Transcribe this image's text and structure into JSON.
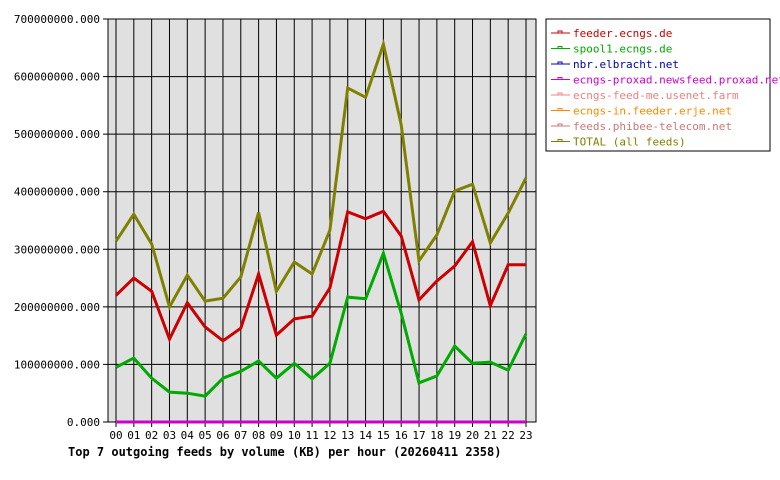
{
  "chart_data": {
    "type": "line",
    "title": "Top 7 outgoing feeds by volume (KB) per hour (20260411 2358)",
    "xlabel": "",
    "ylabel": "",
    "ylim": [
      0,
      700000000
    ],
    "yticks": [
      "0.000",
      "100000000.000",
      "200000000.000",
      "300000000.000",
      "400000000.000",
      "500000000.000",
      "600000000.000",
      "700000000.000"
    ],
    "categories": [
      "00",
      "01",
      "02",
      "03",
      "04",
      "05",
      "06",
      "07",
      "08",
      "09",
      "10",
      "11",
      "12",
      "13",
      "14",
      "15",
      "16",
      "17",
      "18",
      "19",
      "20",
      "21",
      "22",
      "23"
    ],
    "grid": true,
    "legend_position": "right",
    "series": [
      {
        "name": "feeder.ecngs.de",
        "color": "#cc0000",
        "values": [
          220000000,
          250000000,
          227000000,
          144000000,
          207000000,
          165000000,
          141000000,
          163000000,
          257000000,
          151000000,
          179000000,
          184000000,
          233000000,
          365000000,
          353000000,
          366000000,
          323000000,
          212000000,
          245000000,
          271000000,
          313000000,
          202000000,
          273000000,
          273000000
        ]
      },
      {
        "name": "spool1.ecngs.de",
        "color": "#00aa00",
        "values": [
          95000000,
          111000000,
          76000000,
          52000000,
          50000000,
          45000000,
          76000000,
          88000000,
          106000000,
          76000000,
          102000000,
          75000000,
          102000000,
          217000000,
          214000000,
          293000000,
          189000000,
          68000000,
          80000000,
          132000000,
          102000000,
          104000000,
          90000000,
          153000000
        ]
      },
      {
        "name": "nbr.elbracht.net",
        "color": "#0000aa",
        "values": [
          0,
          0,
          0,
          0,
          0,
          0,
          0,
          0,
          0,
          0,
          0,
          0,
          0,
          0,
          0,
          0,
          0,
          0,
          0,
          0,
          0,
          0,
          0,
          0
        ]
      },
      {
        "name": "ecngs-proxad.newsfeed.proxad.net",
        "color": "#cc00cc",
        "values": [
          0,
          0,
          0,
          0,
          0,
          0,
          0,
          0,
          0,
          0,
          0,
          0,
          0,
          0,
          0,
          0,
          0,
          0,
          0,
          0,
          0,
          0,
          0,
          0
        ]
      },
      {
        "name": "ecngs-feed-me.usenet.farm",
        "color": "#f08080",
        "values": [
          0,
          0,
          0,
          0,
          0,
          0,
          0,
          0,
          0,
          0,
          0,
          0,
          0,
          0,
          0,
          0,
          0,
          0,
          0,
          0,
          0,
          0,
          0,
          0
        ]
      },
      {
        "name": "ecngs-in.feeder.erje.net",
        "color": "#ff8800",
        "values": [
          0,
          0,
          0,
          0,
          0,
          0,
          0,
          0,
          0,
          0,
          0,
          0,
          0,
          0,
          0,
          0,
          0,
          0,
          0,
          0,
          0,
          0,
          0,
          0
        ]
      },
      {
        "name": "feeds.phibee-telecom.net",
        "color": "#cc7777",
        "values": [
          0,
          0,
          0,
          0,
          0,
          0,
          0,
          0,
          0,
          0,
          0,
          0,
          0,
          0,
          0,
          0,
          0,
          0,
          0,
          0,
          0,
          0,
          0,
          0
        ]
      },
      {
        "name": "TOTAL (all feeds)",
        "color": "#808000",
        "values": [
          314000000,
          361000000,
          309000000,
          200000000,
          255000000,
          210000000,
          215000000,
          252000000,
          364000000,
          227000000,
          278000000,
          257000000,
          333000000,
          580000000,
          564000000,
          656000000,
          516000000,
          280000000,
          325000000,
          401000000,
          413000000,
          311000000,
          363000000,
          424000000
        ]
      }
    ]
  },
  "colors": {
    "plot_background": "#e0e0e0",
    "grid": "#000000",
    "axis": "#000000"
  }
}
